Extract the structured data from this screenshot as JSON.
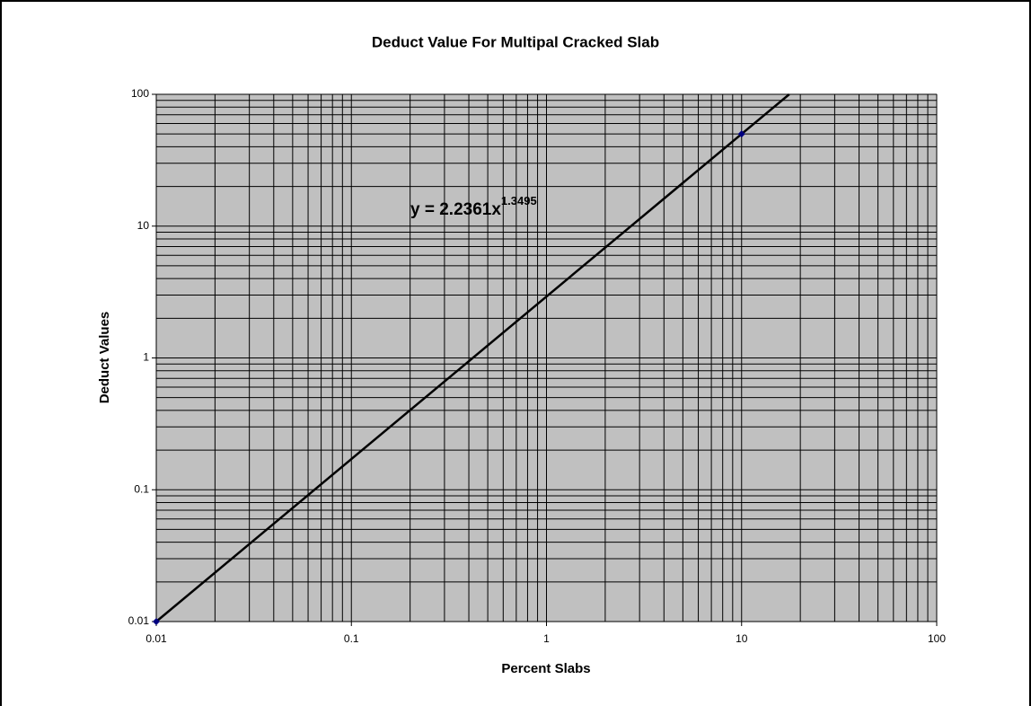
{
  "chart_data": {
    "type": "scatter",
    "title": "Deduct Value For Multipal Cracked Slab",
    "x_label": "Percent Slabs",
    "y_label": "Deduct Values",
    "log_x": true,
    "log_y": true,
    "grid": true,
    "minor_grid": true,
    "plot_background": "#c0c0c0",
    "xlim": [
      0.01,
      100
    ],
    "ylim": [
      0.01,
      100
    ],
    "xticks": [
      0.01,
      0.1,
      1,
      10,
      100
    ],
    "yticks": [
      0.01,
      0.1,
      1,
      10,
      100
    ],
    "trendline": {
      "type": "power",
      "color": "#000000"
    },
    "annotation": {
      "text": "y = 2.2361x",
      "superscript": "1.3495"
    },
    "series": [
      {
        "color": "#000080",
        "x": [
          0.01,
          10
        ],
        "values": [
          0.01,
          50
        ]
      }
    ]
  }
}
